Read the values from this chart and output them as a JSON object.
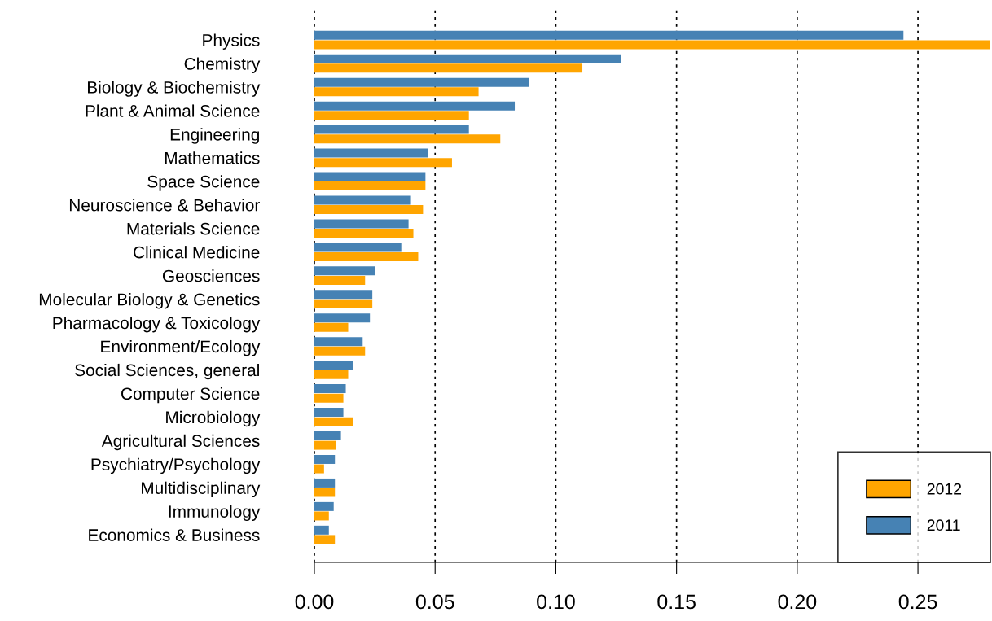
{
  "chart_data": {
    "type": "bar",
    "orientation": "horizontal",
    "categories": [
      "Physics",
      "Chemistry",
      "Biology & Biochemistry",
      "Plant & Animal Science",
      "Engineering",
      "Mathematics",
      "Space Science",
      "Neuroscience & Behavior",
      "Materials Science",
      "Clinical Medicine",
      "Geosciences",
      "Molecular Biology & Genetics",
      "Pharmacology & Toxicology",
      "Environment/Ecology",
      "Social Sciences, general",
      "Computer Science",
      "Microbiology",
      "Agricultural Sciences",
      "Psychiatry/Psychology",
      "Multidisciplinary",
      "Immunology",
      "Economics & Business"
    ],
    "series": [
      {
        "name": "2011",
        "color": "#4682b4",
        "values": [
          0.244,
          0.127,
          0.089,
          0.083,
          0.064,
          0.047,
          0.046,
          0.04,
          0.039,
          0.036,
          0.025,
          0.024,
          0.023,
          0.02,
          0.016,
          0.013,
          0.012,
          0.011,
          0.0085,
          0.0085,
          0.008,
          0.006
        ]
      },
      {
        "name": "2012",
        "color": "#ffa500",
        "values": [
          0.28,
          0.111,
          0.068,
          0.064,
          0.077,
          0.057,
          0.046,
          0.045,
          0.041,
          0.043,
          0.021,
          0.024,
          0.014,
          0.021,
          0.014,
          0.012,
          0.016,
          0.009,
          0.004,
          0.0085,
          0.006,
          0.0085
        ]
      }
    ],
    "xlim": [
      0,
      0.28
    ],
    "xticks": [
      {
        "value": 0,
        "label": "0.00"
      },
      {
        "value": 0.05,
        "label": "0.05"
      },
      {
        "value": 0.1,
        "label": "0.10"
      },
      {
        "value": 0.15,
        "label": "0.15"
      },
      {
        "value": 0.2,
        "label": "0.20"
      },
      {
        "value": 0.25,
        "label": "0.25"
      }
    ],
    "grid": "x",
    "legend": "bottom right"
  }
}
